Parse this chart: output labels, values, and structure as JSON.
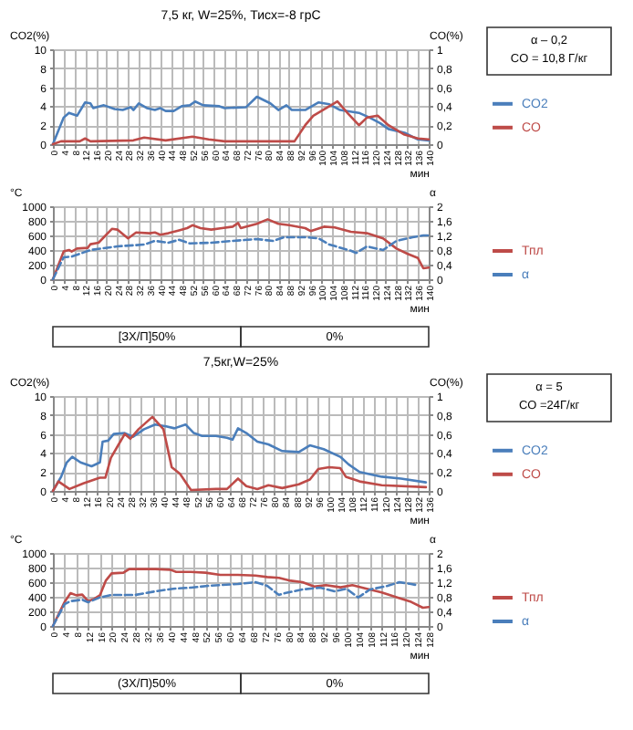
{
  "chart_data": [
    {
      "type": "line",
      "title": "7,5 кг, W=25%, Тисх=-8 грС",
      "xlabel": "мин",
      "ylabel": "CO2(%)",
      "y2label": "CO(%)",
      "xlim": [
        0,
        140
      ],
      "xticks": [
        0,
        4,
        8,
        12,
        16,
        20,
        24,
        28,
        32,
        36,
        40,
        44,
        48,
        52,
        56,
        60,
        64,
        68,
        72,
        76,
        80,
        84,
        88,
        92,
        96,
        100,
        104,
        108,
        112,
        116,
        120,
        124,
        128,
        132,
        136,
        140
      ],
      "ylim": [
        0,
        10
      ],
      "yticks": [
        0,
        2,
        4,
        6,
        8,
        10
      ],
      "y2lim": [
        0,
        1
      ],
      "y2ticks": [
        0,
        {
          "value": 0.2,
          "label": "0,2"
        },
        {
          "value": 0.4,
          "label": "0,4"
        },
        {
          "value": 0.6,
          "label": "0,6"
        },
        {
          "value": 0.8,
          "label": "0,8"
        },
        1
      ],
      "grid": true,
      "legend": "right",
      "annotations": [
        "α – 0,2",
        "CO = 10,8 Г/кг"
      ],
      "series": [
        {
          "name": "CO2",
          "color": "#4a7ebb",
          "x": [
            0,
            4,
            6,
            9,
            12,
            14,
            15,
            19,
            23,
            26,
            29,
            30,
            32,
            35,
            38,
            40,
            42,
            45,
            48,
            51,
            53,
            56,
            62,
            64,
            72,
            76,
            81,
            84,
            87,
            89,
            94,
            99,
            103,
            107,
            114,
            118,
            122,
            125,
            131,
            136,
            140
          ],
          "values": [
            0,
            2.8,
            3.3,
            3.0,
            4.4,
            4.3,
            3.8,
            4.1,
            3.7,
            3.6,
            3.9,
            3.6,
            4.3,
            3.8,
            3.6,
            3.8,
            3.5,
            3.5,
            4.0,
            4.1,
            4.5,
            4.1,
            4.0,
            3.8,
            3.9,
            5.0,
            4.3,
            3.6,
            4.1,
            3.6,
            3.6,
            4.4,
            4.2,
            3.6,
            3.3,
            2.8,
            2.2,
            1.6,
            1.2,
            0.5,
            0.4
          ]
        },
        {
          "name": "CO",
          "color": "#be4b48",
          "axis": "y2",
          "x": [
            0,
            3,
            10,
            12,
            14,
            30,
            34,
            42,
            52,
            58,
            64,
            90,
            94,
            97,
            100,
            106,
            110,
            114,
            117,
            121,
            125,
            131,
            136,
            140
          ],
          "values": [
            0,
            0.03,
            0.03,
            0.06,
            0.03,
            0.04,
            0.07,
            0.04,
            0.08,
            0.05,
            0.03,
            0.03,
            0.2,
            0.3,
            0.35,
            0.45,
            0.32,
            0.2,
            0.28,
            0.3,
            0.2,
            0.1,
            0.06,
            0.05
          ]
        }
      ]
    },
    {
      "type": "line",
      "xlabel": "мин",
      "ylabel": "°C",
      "y2label": "α",
      "xlim": [
        0,
        140
      ],
      "xticks": [
        0,
        4,
        8,
        12,
        16,
        20,
        24,
        28,
        32,
        36,
        40,
        44,
        48,
        52,
        56,
        60,
        64,
        68,
        72,
        76,
        80,
        84,
        88,
        92,
        96,
        100,
        104,
        108,
        112,
        116,
        120,
        124,
        128,
        132,
        136,
        140
      ],
      "ylim": [
        0,
        1000
      ],
      "yticks": [
        0,
        200,
        400,
        600,
        800,
        1000
      ],
      "y2lim": [
        0,
        2
      ],
      "y2ticks": [
        0,
        {
          "value": 0.4,
          "label": "0,4"
        },
        {
          "value": 0.8,
          "label": "0,8"
        },
        {
          "value": 1.2,
          "label": "1,2"
        },
        {
          "value": 1.6,
          "label": "1,6"
        },
        2
      ],
      "grid": true,
      "legend": "right",
      "annotations": [
        "[ЗХ/П]50%",
        "0%"
      ],
      "series": [
        {
          "name": "Тпл",
          "color": "#be4b48",
          "x": [
            0,
            4,
            6,
            7,
            9,
            13,
            14,
            17,
            22,
            24,
            28,
            31,
            36,
            38,
            40,
            43,
            47,
            50,
            52,
            55,
            59,
            63,
            67,
            69,
            70,
            76,
            80,
            84,
            88,
            94,
            96,
            101,
            105,
            111,
            117,
            123,
            128,
            132,
            136,
            138,
            140
          ],
          "values": [
            0,
            380,
            400,
            380,
            420,
            430,
            480,
            500,
            690,
            680,
            560,
            640,
            630,
            640,
            610,
            630,
            670,
            700,
            740,
            700,
            680,
            700,
            720,
            770,
            700,
            760,
            820,
            760,
            740,
            700,
            660,
            720,
            710,
            650,
            630,
            560,
            420,
            350,
            290,
            150,
            160
          ]
        },
        {
          "name": "α",
          "color": "#4a7ebb",
          "axis": "y2",
          "line_style": "dashed",
          "x": [
            0,
            4,
            7,
            14,
            24,
            34,
            38,
            43,
            47,
            51,
            59,
            67,
            76,
            82,
            86,
            94,
            99,
            103,
            111,
            113,
            117,
            123,
            128,
            134,
            138,
            140
          ],
          "values": [
            0,
            0.6,
            0.62,
            0.8,
            0.9,
            0.95,
            1.05,
            1.0,
            1.08,
            0.98,
            1.0,
            1.05,
            1.1,
            1.05,
            1.15,
            1.15,
            1.12,
            0.95,
            0.78,
            0.72,
            0.9,
            0.8,
            1.05,
            1.15,
            1.2,
            1.2
          ]
        }
      ]
    },
    {
      "type": "line",
      "title": "7,5кг,W=25%",
      "xlabel": "мин",
      "ylabel": "CO2(%)",
      "y2label": "CO(%)",
      "xlim": [
        0,
        136
      ],
      "xticks": [
        0,
        4,
        8,
        12,
        16,
        20,
        24,
        28,
        32,
        36,
        40,
        44,
        48,
        52,
        56,
        60,
        64,
        68,
        72,
        76,
        80,
        84,
        88,
        92,
        96,
        100,
        104,
        108,
        112,
        116,
        120,
        124,
        128,
        132,
        136
      ],
      "ylim": [
        0,
        10
      ],
      "yticks": [
        0,
        2,
        4,
        6,
        8,
        10
      ],
      "y2lim": [
        0,
        1
      ],
      "y2ticks": [
        0,
        {
          "value": 0.2,
          "label": "0,2"
        },
        {
          "value": 0.4,
          "label": "0,4"
        },
        {
          "value": 0.6,
          "label": "0,6"
        },
        {
          "value": 0.8,
          "label": "0,8"
        },
        1
      ],
      "grid": true,
      "legend": "right",
      "annotations": [
        "α = 5",
        "CO =24Г/кг"
      ],
      "series": [
        {
          "name": "CO2",
          "color": "#4a7ebb",
          "x": [
            0,
            3,
            5,
            7,
            10,
            14,
            17,
            18,
            20,
            22,
            26,
            29,
            33,
            37,
            41,
            44,
            48,
            51,
            54,
            59,
            63,
            65,
            67,
            70,
            74,
            78,
            83,
            89,
            93,
            98,
            104,
            107,
            111,
            119,
            126,
            135
          ],
          "values": [
            0,
            1.5,
            3.0,
            3.6,
            3.0,
            2.6,
            3.0,
            5.2,
            5.3,
            6.0,
            6.1,
            5.7,
            6.5,
            7.0,
            6.8,
            6.6,
            7.0,
            6.1,
            5.8,
            5.8,
            5.6,
            5.4,
            6.6,
            6.1,
            5.2,
            4.9,
            4.2,
            4.1,
            4.8,
            4.4,
            3.6,
            2.8,
            2.0,
            1.5,
            1.3,
            0.9
          ]
        },
        {
          "name": "CO",
          "color": "#be4b48",
          "axis": "y2",
          "x": [
            0,
            2,
            6,
            11,
            17,
            19,
            21,
            24,
            26,
            28,
            31,
            36,
            40,
            43,
            46,
            49,
            50,
            59,
            63,
            67,
            70,
            74,
            78,
            83,
            89,
            93,
            96,
            100,
            104,
            106,
            111,
            119,
            135
          ],
          "values": [
            0,
            0.1,
            0.02,
            0.08,
            0.14,
            0.14,
            0.35,
            0.5,
            0.6,
            0.55,
            0.65,
            0.78,
            0.65,
            0.25,
            0.18,
            0.05,
            0.01,
            0.02,
            0.02,
            0.13,
            0.05,
            0.02,
            0.06,
            0.03,
            0.07,
            0.12,
            0.23,
            0.25,
            0.24,
            0.15,
            0.1,
            0.06,
            0.04
          ]
        }
      ]
    },
    {
      "type": "line",
      "xlabel": "мин",
      "ylabel": "°C",
      "y2label": "α",
      "xlim": [
        0,
        128
      ],
      "xticks": [
        0,
        4,
        8,
        12,
        16,
        20,
        24,
        28,
        32,
        36,
        40,
        44,
        48,
        52,
        56,
        60,
        64,
        68,
        72,
        76,
        80,
        84,
        88,
        92,
        96,
        100,
        104,
        108,
        112,
        116,
        120,
        124,
        128
      ],
      "ylim": [
        0,
        1000
      ],
      "yticks": [
        0,
        200,
        400,
        600,
        800,
        1000
      ],
      "y2lim": [
        0,
        2
      ],
      "y2ticks": [
        0,
        {
          "value": 0.4,
          "label": "0,4"
        },
        {
          "value": 0.8,
          "label": "0,8"
        },
        {
          "value": 1.2,
          "label": "1,2"
        },
        {
          "value": 1.6,
          "label": "1,6"
        },
        2
      ],
      "grid": true,
      "legend": "right",
      "annotations": [
        "(ЗХ/П)50%",
        "0%"
      ],
      "series": [
        {
          "name": "Тпл",
          "color": "#be4b48",
          "x": [
            0,
            4,
            6,
            8,
            10,
            12,
            14,
            16,
            18,
            20,
            24,
            26,
            35,
            40,
            42,
            47,
            52,
            57,
            63,
            69,
            73,
            77,
            81,
            85,
            89,
            93,
            98,
            102,
            106,
            112,
            118,
            122,
            126,
            128
          ],
          "values": [
            0,
            330,
            450,
            420,
            430,
            340,
            370,
            420,
            620,
            720,
            730,
            780,
            780,
            770,
            740,
            740,
            730,
            700,
            700,
            690,
            670,
            660,
            620,
            600,
            540,
            560,
            530,
            560,
            520,
            460,
            380,
            330,
            250,
            260
          ]
        },
        {
          "name": "α",
          "color": "#4a7ebb",
          "axis": "y2",
          "line_style": "dashed",
          "x": [
            0,
            4,
            6,
            10,
            12,
            16,
            20,
            28,
            35,
            41,
            47,
            53,
            63,
            69,
            73,
            77,
            79,
            85,
            91,
            96,
            100,
            104,
            108,
            114,
            118,
            122,
            124
          ],
          "values": [
            0,
            0.6,
            0.68,
            0.72,
            0.65,
            0.78,
            0.85,
            0.85,
            0.95,
            1.02,
            1.05,
            1.1,
            1.15,
            1.2,
            1.1,
            0.85,
            0.9,
            1.0,
            1.05,
            0.95,
            1.02,
            0.78,
            1.0,
            1.1,
            1.2,
            1.15,
            1.12
          ]
        }
      ]
    }
  ]
}
